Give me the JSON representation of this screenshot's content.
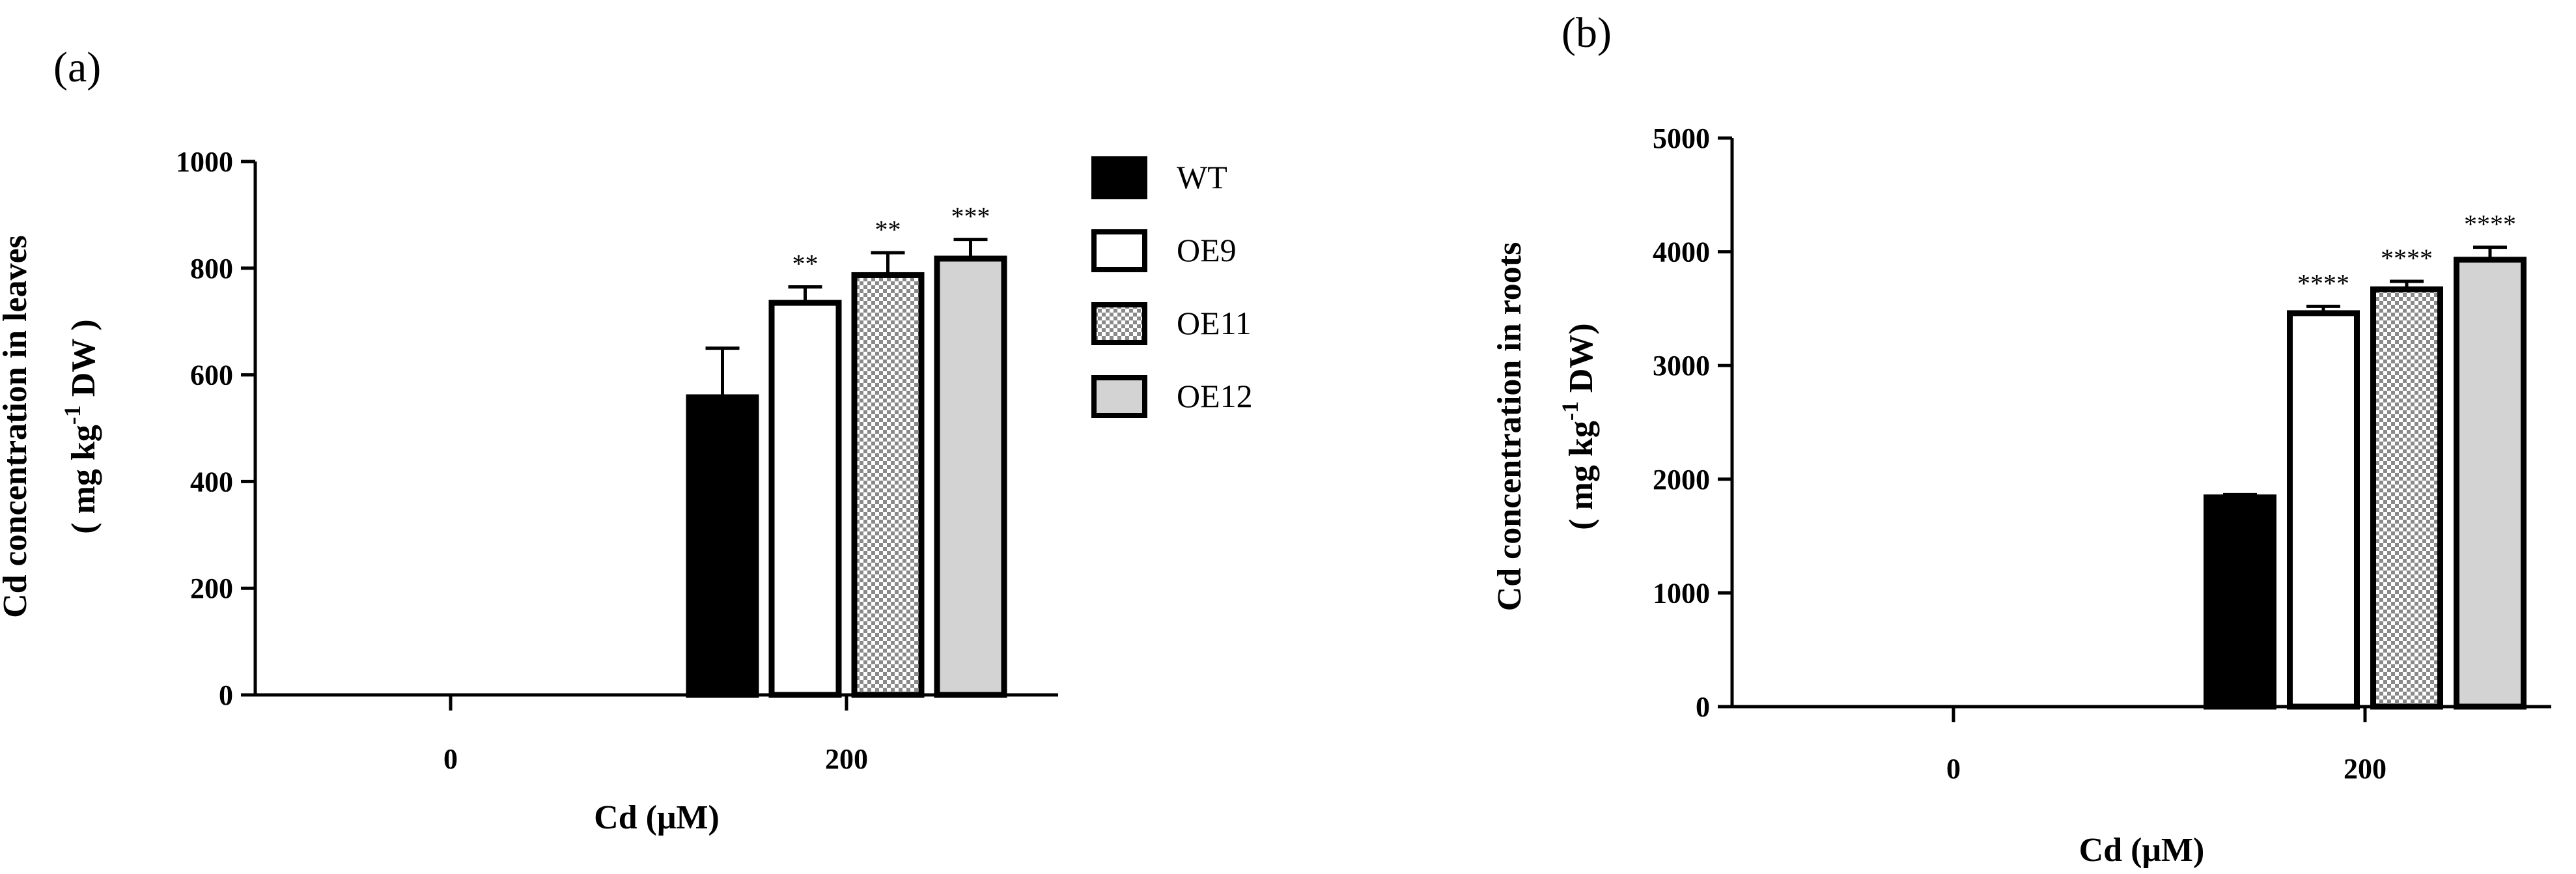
{
  "colors": {
    "WT": "#000000",
    "OE9": "#ffffff",
    "OE11": "checker",
    "OE12": "#d3d3d3",
    "stroke": "#000000"
  },
  "legend": {
    "items": [
      "WT",
      "OE9",
      "OE11",
      "OE12"
    ],
    "placement": "right of panel (a)"
  },
  "chart_data": [
    {
      "panel": "(a)",
      "type": "bar",
      "categories": [
        "0",
        "200"
      ],
      "series": [
        {
          "name": "WT",
          "values": [
            0,
            558
          ],
          "errors": [
            0,
            92
          ],
          "significance": [
            "",
            ""
          ]
        },
        {
          "name": "OE9",
          "values": [
            0,
            735
          ],
          "errors": [
            0,
            30
          ],
          "significance": [
            "",
            "**"
          ]
        },
        {
          "name": "OE11",
          "values": [
            0,
            787
          ],
          "errors": [
            0,
            42
          ],
          "significance": [
            "",
            "**"
          ]
        },
        {
          "name": "OE12",
          "values": [
            0,
            818
          ],
          "errors": [
            0,
            36
          ],
          "significance": [
            "",
            "***"
          ]
        }
      ],
      "xlabel": "Cd (μM)",
      "ylabel_line1": "Cd concentration in leaves",
      "ylabel_line2_pre": "( mg kg",
      "ylabel_sup": "-1",
      "ylabel_line2_post": " DW )",
      "ylim": [
        0,
        1000
      ],
      "yticks": [
        "0",
        "200",
        "400",
        "600",
        "800",
        "1000"
      ]
    },
    {
      "panel": "(b)",
      "type": "bar",
      "categories": [
        "0",
        "200"
      ],
      "series": [
        {
          "name": "WT",
          "values": [
            0,
            1840
          ],
          "errors": [
            0,
            25
          ],
          "significance": [
            "",
            ""
          ]
        },
        {
          "name": "OE9",
          "values": [
            0,
            3460
          ],
          "errors": [
            0,
            60
          ],
          "significance": [
            "",
            "****"
          ]
        },
        {
          "name": "OE11",
          "values": [
            0,
            3670
          ],
          "errors": [
            0,
            70
          ],
          "significance": [
            "",
            "****"
          ]
        },
        {
          "name": "OE12",
          "values": [
            0,
            3930
          ],
          "errors": [
            0,
            110
          ],
          "significance": [
            "",
            "****"
          ]
        }
      ],
      "xlabel": "Cd (μM)",
      "ylabel_line1": "Cd concentration in roots",
      "ylabel_line2_pre": "( mg kg",
      "ylabel_sup": "-1",
      "ylabel_line2_post": " DW)",
      "ylim": [
        0,
        5000
      ],
      "yticks": [
        "0",
        "1000",
        "2000",
        "3000",
        "4000",
        "5000"
      ]
    }
  ]
}
